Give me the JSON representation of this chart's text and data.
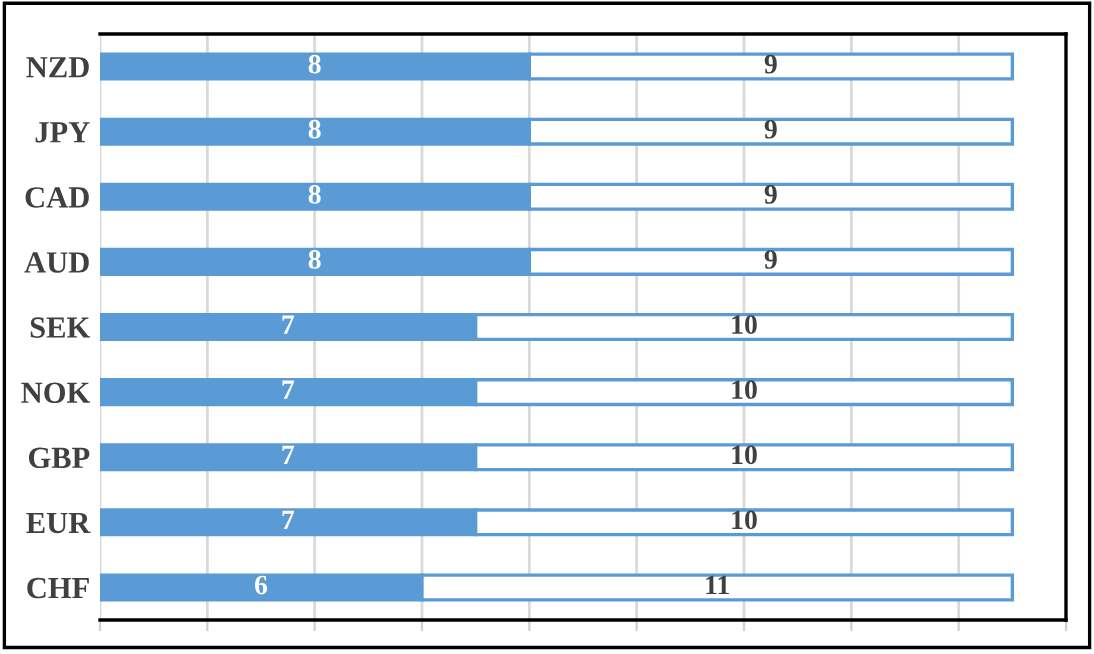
{
  "chart_data": {
    "type": "bar",
    "orientation": "horizontal",
    "stacked": true,
    "data_labels": true,
    "grid": "x",
    "tick_labels": "y",
    "legend": false,
    "categories": [
      "NZD",
      "JPY",
      "CAD",
      "AUD",
      "SEK",
      "NOK",
      "GBP",
      "EUR",
      "CHF"
    ],
    "series": [
      {
        "color": "#5b9bd5",
        "values": [
          8,
          8,
          8,
          8,
          7,
          7,
          7,
          7,
          6
        ]
      },
      {
        "color": "#ffffff",
        "values": [
          9,
          9,
          9,
          9,
          10,
          10,
          10,
          10,
          11
        ]
      }
    ],
    "xlim": [
      0,
      18
    ],
    "xticks": [
      {
        "value": 0,
        "label": null
      },
      {
        "value": 2,
        "label": null
      },
      {
        "value": 4,
        "label": null
      },
      {
        "value": 6,
        "label": null
      },
      {
        "value": 8,
        "label": null
      },
      {
        "value": 10,
        "label": null
      },
      {
        "value": 12,
        "label": null
      },
      {
        "value": 14,
        "label": null
      },
      {
        "value": 16,
        "label": null
      },
      {
        "value": 18,
        "label": null
      }
    ]
  }
}
